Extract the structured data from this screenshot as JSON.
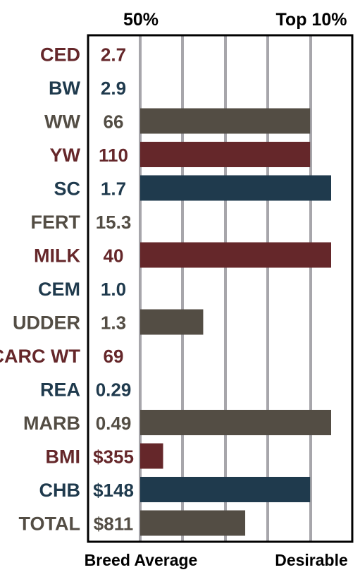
{
  "chart_data": {
    "type": "bar",
    "orientation": "horizontal",
    "title": "",
    "xlabel": "",
    "ylabel": "",
    "top_labels": {
      "left": "50%",
      "right": "Top 10%"
    },
    "bottom_labels": {
      "left": "Breed Average",
      "right": "Desirable"
    },
    "xlim": [
      0,
      100
    ],
    "grid": true,
    "colors": {
      "red": "#65272a",
      "blue": "#1f3a4d",
      "gray": "#534d44"
    },
    "rows": [
      {
        "label": "CED",
        "value_text": "2.7",
        "bar": 0,
        "color": "red"
      },
      {
        "label": "BW",
        "value_text": "2.9",
        "bar": 0,
        "color": "blue"
      },
      {
        "label": "WW",
        "value_text": "66",
        "bar": 89,
        "color": "gray"
      },
      {
        "label": "YW",
        "value_text": "110",
        "bar": 89,
        "color": "red"
      },
      {
        "label": "SC",
        "value_text": "1.7",
        "bar": 100,
        "color": "blue"
      },
      {
        "label": "FERT",
        "value_text": "15.3",
        "bar": 0,
        "color": "gray"
      },
      {
        "label": "MILK",
        "value_text": "40",
        "bar": 100,
        "color": "red"
      },
      {
        "label": "CEM",
        "value_text": "1.0",
        "bar": 0,
        "color": "blue"
      },
      {
        "label": "UDDER",
        "value_text": "1.3",
        "bar": 33,
        "color": "gray"
      },
      {
        "label": "CARC WT",
        "value_text": "69",
        "bar": 0,
        "color": "red"
      },
      {
        "label": "REA",
        "value_text": "0.29",
        "bar": 0,
        "color": "blue"
      },
      {
        "label": "MARB",
        "value_text": "0.49",
        "bar": 100,
        "color": "gray"
      },
      {
        "label": "BMI",
        "value_text": "$355",
        "bar": 12,
        "color": "red"
      },
      {
        "label": "CHB",
        "value_text": "$148",
        "bar": 89,
        "color": "blue"
      },
      {
        "label": "TOTAL",
        "value_text": "$811",
        "bar": 55,
        "color": "gray"
      }
    ]
  }
}
